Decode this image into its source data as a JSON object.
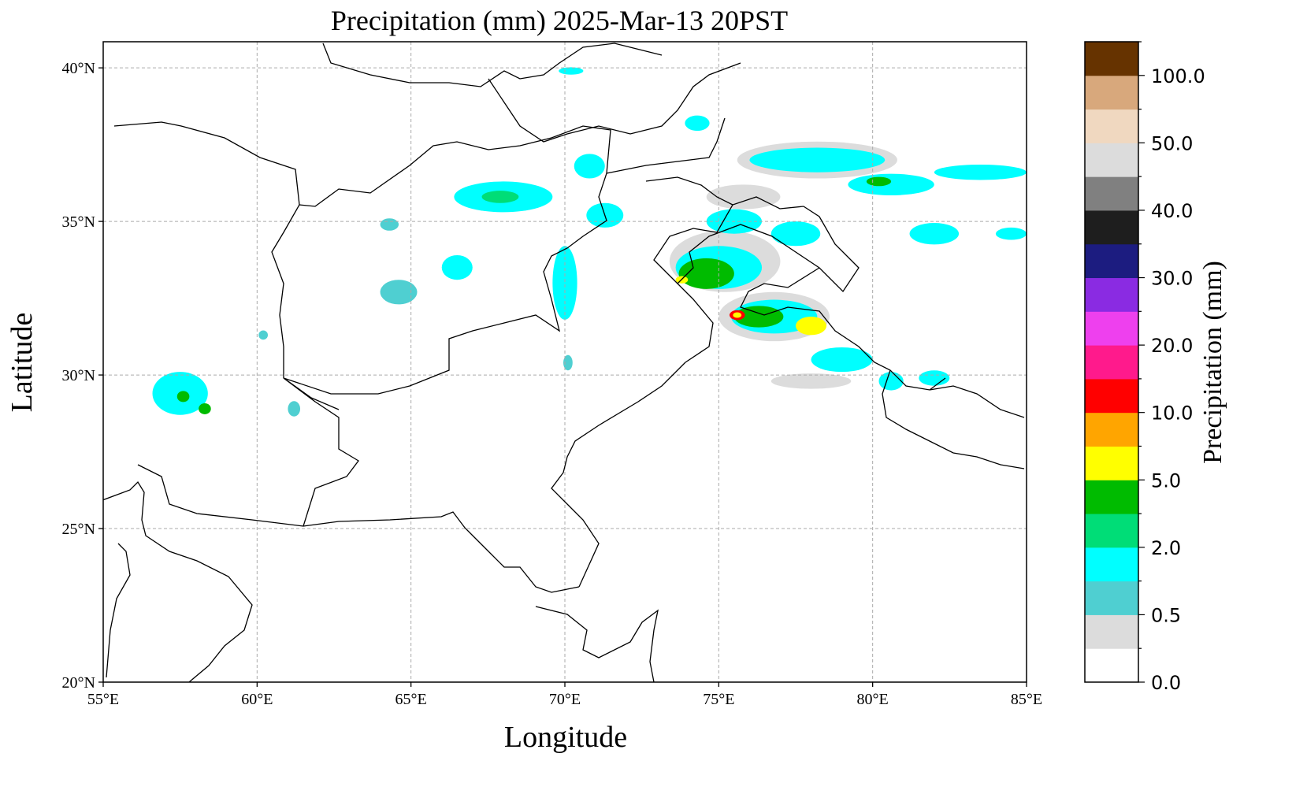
{
  "title": "Precipitation (mm)  2025-Mar-13 20PST",
  "x_axis": {
    "label": "Longitude",
    "ticks": [
      {
        "lon": 55,
        "label": "55°E"
      },
      {
        "lon": 60,
        "label": "60°E"
      },
      {
        "lon": 65,
        "label": "65°E"
      },
      {
        "lon": 70,
        "label": "70°E"
      },
      {
        "lon": 75,
        "label": "75°E"
      },
      {
        "lon": 80,
        "label": "80°E"
      },
      {
        "lon": 85,
        "label": "85°E"
      }
    ],
    "range": [
      55,
      85
    ]
  },
  "y_axis": {
    "label": "Latitude",
    "ticks": [
      {
        "lat": 20,
        "label": "20°N"
      },
      {
        "lat": 25,
        "label": "25°N"
      },
      {
        "lat": 30,
        "label": "30°N"
      },
      {
        "lat": 35,
        "label": "35°N"
      },
      {
        "lat": 40,
        "label": "40°N"
      }
    ],
    "range": [
      20,
      40.85
    ]
  },
  "grid": true,
  "colorbar": {
    "label": "Precipitation (mm)",
    "colors": [
      "#ffffff",
      "#dcdcdc",
      "#4fcfd1",
      "#00ffff",
      "#00dd77",
      "#00bb00",
      "#ffff00",
      "#ffa500",
      "#ff0000",
      "#ff1a8c",
      "#ee40ee",
      "#8a2be2",
      "#1c1c80",
      "#1e1e1e",
      "#808080",
      "#dcdcdc",
      "#f0d8c0",
      "#d8a87c",
      "#663300"
    ],
    "tick_labels": [
      {
        "index": 0,
        "label": "0.0"
      },
      {
        "index": 2,
        "label": "0.5"
      },
      {
        "index": 4,
        "label": "2.0"
      },
      {
        "index": 6,
        "label": "5.0"
      },
      {
        "index": 8,
        "label": "10.0"
      },
      {
        "index": 10,
        "label": "20.0"
      },
      {
        "index": 12,
        "label": "30.0"
      },
      {
        "index": 14,
        "label": "40.0"
      },
      {
        "index": 16,
        "label": "50.0"
      },
      {
        "index": 18,
        "label": "100.0"
      }
    ]
  },
  "precip_cells": [
    {
      "lon": 75.2,
      "lat": 33.7,
      "rx": 1.8,
      "ry": 1.0,
      "level": 1
    },
    {
      "lon": 75.0,
      "lat": 33.5,
      "rx": 1.4,
      "ry": 0.7,
      "level": 3
    },
    {
      "lon": 74.6,
      "lat": 33.3,
      "rx": 0.9,
      "ry": 0.5,
      "level": 5
    },
    {
      "lon": 73.8,
      "lat": 33.1,
      "rx": 0.2,
      "ry": 0.12,
      "level": 6
    },
    {
      "lon": 76.8,
      "lat": 31.9,
      "rx": 1.8,
      "ry": 0.8,
      "level": 1
    },
    {
      "lon": 76.8,
      "lat": 31.9,
      "rx": 1.4,
      "ry": 0.55,
      "level": 3
    },
    {
      "lon": 76.3,
      "lat": 31.9,
      "rx": 0.8,
      "ry": 0.35,
      "level": 5
    },
    {
      "lon": 75.6,
      "lat": 31.95,
      "rx": 0.25,
      "ry": 0.16,
      "level": 8
    },
    {
      "lon": 75.6,
      "lat": 31.95,
      "rx": 0.14,
      "ry": 0.09,
      "level": 6
    },
    {
      "lon": 78.0,
      "lat": 31.6,
      "rx": 0.5,
      "ry": 0.3,
      "level": 6
    },
    {
      "lon": 79.0,
      "lat": 30.5,
      "rx": 1.0,
      "ry": 0.4,
      "level": 3
    },
    {
      "lon": 78.0,
      "lat": 29.8,
      "rx": 1.3,
      "ry": 0.25,
      "level": 1
    },
    {
      "lon": 80.6,
      "lat": 29.8,
      "rx": 0.4,
      "ry": 0.3,
      "level": 3
    },
    {
      "lon": 82.0,
      "lat": 29.9,
      "rx": 0.5,
      "ry": 0.25,
      "level": 3
    },
    {
      "lon": 78.2,
      "lat": 37.0,
      "rx": 2.6,
      "ry": 0.6,
      "level": 1
    },
    {
      "lon": 78.2,
      "lat": 37.0,
      "rx": 2.2,
      "ry": 0.4,
      "level": 3
    },
    {
      "lon": 80.6,
      "lat": 36.2,
      "rx": 1.4,
      "ry": 0.35,
      "level": 3
    },
    {
      "lon": 80.2,
      "lat": 36.3,
      "rx": 0.4,
      "ry": 0.15,
      "level": 5
    },
    {
      "lon": 83.5,
      "lat": 36.6,
      "rx": 1.5,
      "ry": 0.25,
      "level": 3
    },
    {
      "lon": 82.0,
      "lat": 34.6,
      "rx": 0.8,
      "ry": 0.35,
      "level": 3
    },
    {
      "lon": 84.5,
      "lat": 34.6,
      "rx": 0.5,
      "ry": 0.2,
      "level": 3
    },
    {
      "lon": 75.8,
      "lat": 35.8,
      "rx": 1.2,
      "ry": 0.4,
      "level": 1
    },
    {
      "lon": 75.5,
      "lat": 35.0,
      "rx": 0.9,
      "ry": 0.4,
      "level": 3
    },
    {
      "lon": 77.5,
      "lat": 34.6,
      "rx": 0.8,
      "ry": 0.4,
      "level": 3
    },
    {
      "lon": 68.0,
      "lat": 35.8,
      "rx": 1.6,
      "ry": 0.5,
      "level": 3
    },
    {
      "lon": 67.9,
      "lat": 35.8,
      "rx": 0.6,
      "ry": 0.2,
      "level": 4
    },
    {
      "lon": 70.8,
      "lat": 36.8,
      "rx": 0.5,
      "ry": 0.4,
      "level": 3
    },
    {
      "lon": 71.3,
      "lat": 35.2,
      "rx": 0.6,
      "ry": 0.4,
      "level": 3
    },
    {
      "lon": 70.0,
      "lat": 33.0,
      "rx": 0.4,
      "ry": 1.2,
      "level": 3
    },
    {
      "lon": 64.3,
      "lat": 34.9,
      "rx": 0.3,
      "ry": 0.2,
      "level": 2
    },
    {
      "lon": 64.6,
      "lat": 32.7,
      "rx": 0.6,
      "ry": 0.4,
      "level": 2
    },
    {
      "lon": 66.5,
      "lat": 33.5,
      "rx": 0.5,
      "ry": 0.4,
      "level": 3
    },
    {
      "lon": 57.5,
      "lat": 29.4,
      "rx": 0.9,
      "ry": 0.7,
      "level": 3
    },
    {
      "lon": 57.6,
      "lat": 29.3,
      "rx": 0.2,
      "ry": 0.18,
      "level": 5
    },
    {
      "lon": 58.3,
      "lat": 28.9,
      "rx": 0.2,
      "ry": 0.18,
      "level": 5
    },
    {
      "lon": 61.2,
      "lat": 28.9,
      "rx": 0.2,
      "ry": 0.25,
      "level": 2
    },
    {
      "lon": 60.2,
      "lat": 31.3,
      "rx": 0.15,
      "ry": 0.15,
      "level": 2
    },
    {
      "lon": 70.1,
      "lat": 30.4,
      "rx": 0.15,
      "ry": 0.25,
      "level": 2
    },
    {
      "lon": 74.3,
      "lat": 38.2,
      "rx": 0.4,
      "ry": 0.25,
      "level": 3
    },
    {
      "lon": 70.2,
      "lat": 39.9,
      "rx": 0.4,
      "ry": 0.12,
      "level": 3
    }
  ]
}
